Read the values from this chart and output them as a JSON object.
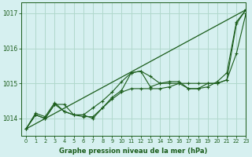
{
  "title": "Graphe pression niveau de la mer (hPa)",
  "background_color": "#d6f0f0",
  "grid_color": "#b0d8cc",
  "line_color": "#1a5c1a",
  "xlim": [
    -0.5,
    23
  ],
  "ylim": [
    1013.5,
    1017.3
  ],
  "yticks": [
    1014,
    1015,
    1016,
    1017
  ],
  "xticks": [
    0,
    1,
    2,
    3,
    4,
    5,
    6,
    7,
    8,
    9,
    10,
    11,
    12,
    13,
    14,
    15,
    16,
    17,
    18,
    19,
    20,
    21,
    22,
    23
  ],
  "straight_line": [
    1013.7,
    1017.1
  ],
  "series_with_markers": [
    [
      1013.7,
      1014.1,
      1014.0,
      1014.4,
      1014.4,
      1014.1,
      1014.1,
      1014.0,
      1014.3,
      1014.6,
      1014.8,
      1015.3,
      1015.35,
      1014.9,
      1015.0,
      1015.0,
      1015.0,
      1014.85,
      1014.85,
      1015.0,
      1015.0,
      1015.1,
      1016.7,
      1017.1
    ],
    [
      1013.7,
      1014.1,
      1014.0,
      1014.4,
      1014.2,
      1014.1,
      1014.1,
      1014.3,
      1014.5,
      1014.75,
      1015.05,
      1015.3,
      1015.35,
      1015.2,
      1015.0,
      1015.05,
      1015.05,
      1014.85,
      1014.85,
      1014.9,
      1015.05,
      1015.3,
      1016.75,
      1017.1
    ],
    [
      1013.7,
      1014.15,
      1014.05,
      1014.45,
      1014.2,
      1014.1,
      1014.05,
      1014.05,
      1014.3,
      1014.55,
      1014.75,
      1014.85,
      1014.85,
      1014.85,
      1014.85,
      1014.9,
      1015.0,
      1015.0,
      1015.0,
      1015.0,
      1015.0,
      1015.1,
      1015.85,
      1017.0
    ]
  ]
}
